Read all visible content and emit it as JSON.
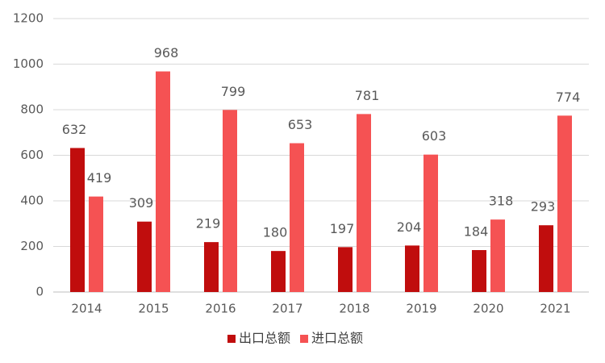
{
  "chart_data": {
    "type": "bar",
    "categories": [
      "2014",
      "2015",
      "2016",
      "2017",
      "2018",
      "2019",
      "2020",
      "2021"
    ],
    "series": [
      {
        "name": "出口总额",
        "color": "#c00d0d",
        "values": [
          632,
          309,
          219,
          180,
          197,
          204,
          184,
          293
        ]
      },
      {
        "name": "进口总额",
        "color": "#f55253",
        "values": [
          419,
          968,
          799,
          653,
          781,
          603,
          318,
          774
        ]
      }
    ],
    "ylim": [
      0,
      1200
    ],
    "yticks": [
      0,
      200,
      400,
      600,
      800,
      1000,
      1200
    ],
    "grid": true,
    "legend": "bottom"
  }
}
